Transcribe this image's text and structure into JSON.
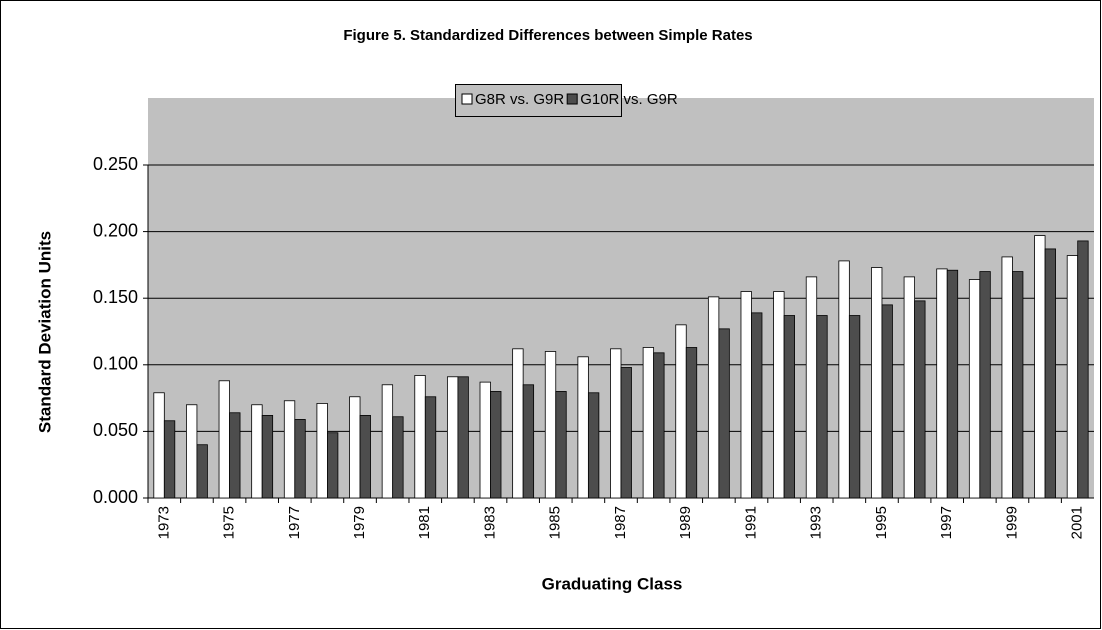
{
  "chart_data": {
    "type": "bar",
    "title": "Figure 5. Standardized Differences between Simple Rates",
    "x_label": "Graduating Class",
    "y_label": "Standard Deviation Units",
    "categories": [
      "1973",
      null,
      "1975",
      null,
      "1977",
      null,
      "1979",
      null,
      "1981",
      null,
      "1983",
      null,
      "1985",
      null,
      "1987",
      null,
      "1989",
      null,
      "1991",
      null,
      "1993",
      null,
      "1995",
      null,
      "1997",
      null,
      "1999",
      null,
      "2001"
    ],
    "series": [
      {
        "name": "G8R vs. G9R",
        "color": "#ffffff",
        "values": [
          0.079,
          0.07,
          0.088,
          0.07,
          0.073,
          0.071,
          0.076,
          0.085,
          0.092,
          0.091,
          0.087,
          0.112,
          0.11,
          0.106,
          0.112,
          0.113,
          0.13,
          0.151,
          0.155,
          0.155,
          0.166,
          0.178,
          0.173,
          0.166,
          0.172,
          0.164,
          0.181,
          0.197,
          0.182
        ]
      },
      {
        "name": "G10R vs. G9R",
        "color": "#4d4d4d",
        "values": [
          0.058,
          0.04,
          0.064,
          0.062,
          0.059,
          0.049,
          0.062,
          0.061,
          0.076,
          0.091,
          0.08,
          0.085,
          0.08,
          0.079,
          0.098,
          0.109,
          0.113,
          0.127,
          0.139,
          0.137,
          0.137,
          0.137,
          0.145,
          0.148,
          0.171,
          0.17,
          0.17,
          0.187,
          0.193
        ]
      }
    ],
    "ylim": [
      0,
      0.25
    ],
    "yticks": [
      {
        "value": 0,
        "label": "0.000"
      },
      {
        "value": 0.05,
        "label": "0.050"
      },
      {
        "value": 0.1,
        "label": "0.100"
      },
      {
        "value": 0.15,
        "label": "0.150"
      },
      {
        "value": 0.2,
        "label": "0.200"
      },
      {
        "value": 0.25,
        "label": "0.250"
      }
    ],
    "grid": true,
    "legend": "top"
  }
}
